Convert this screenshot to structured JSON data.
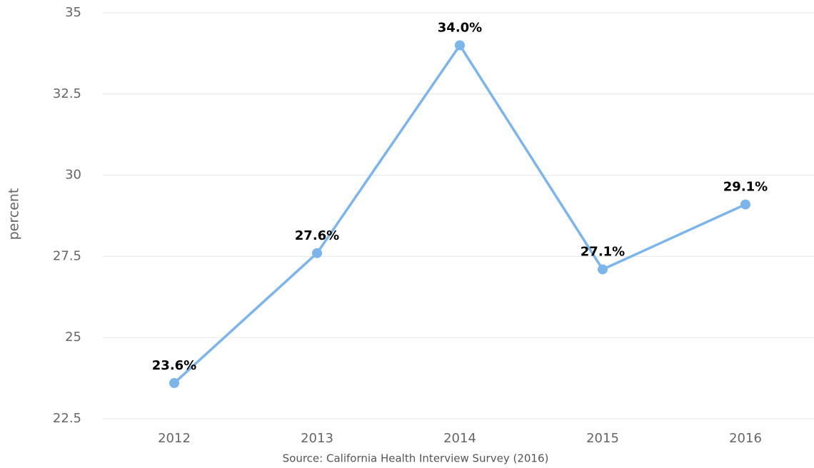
{
  "chart_data": {
    "type": "line",
    "y_label": "percent",
    "source": "Source: California Health Interview Survey (2016)",
    "categories": [
      "2012",
      "2013",
      "2014",
      "2015",
      "2016"
    ],
    "series": [
      {
        "name": "percent",
        "color": "#7cb5ec",
        "values": [
          23.6,
          27.6,
          34.0,
          27.1,
          29.1
        ],
        "value_labels": [
          "23.6%",
          "27.6%",
          "34.0%",
          "27.1%",
          "29.1%"
        ]
      }
    ],
    "ylim": [
      22.5,
      35
    ],
    "yticks": [
      22.5,
      25,
      27.5,
      30,
      32.5,
      35
    ],
    "grid": true
  }
}
